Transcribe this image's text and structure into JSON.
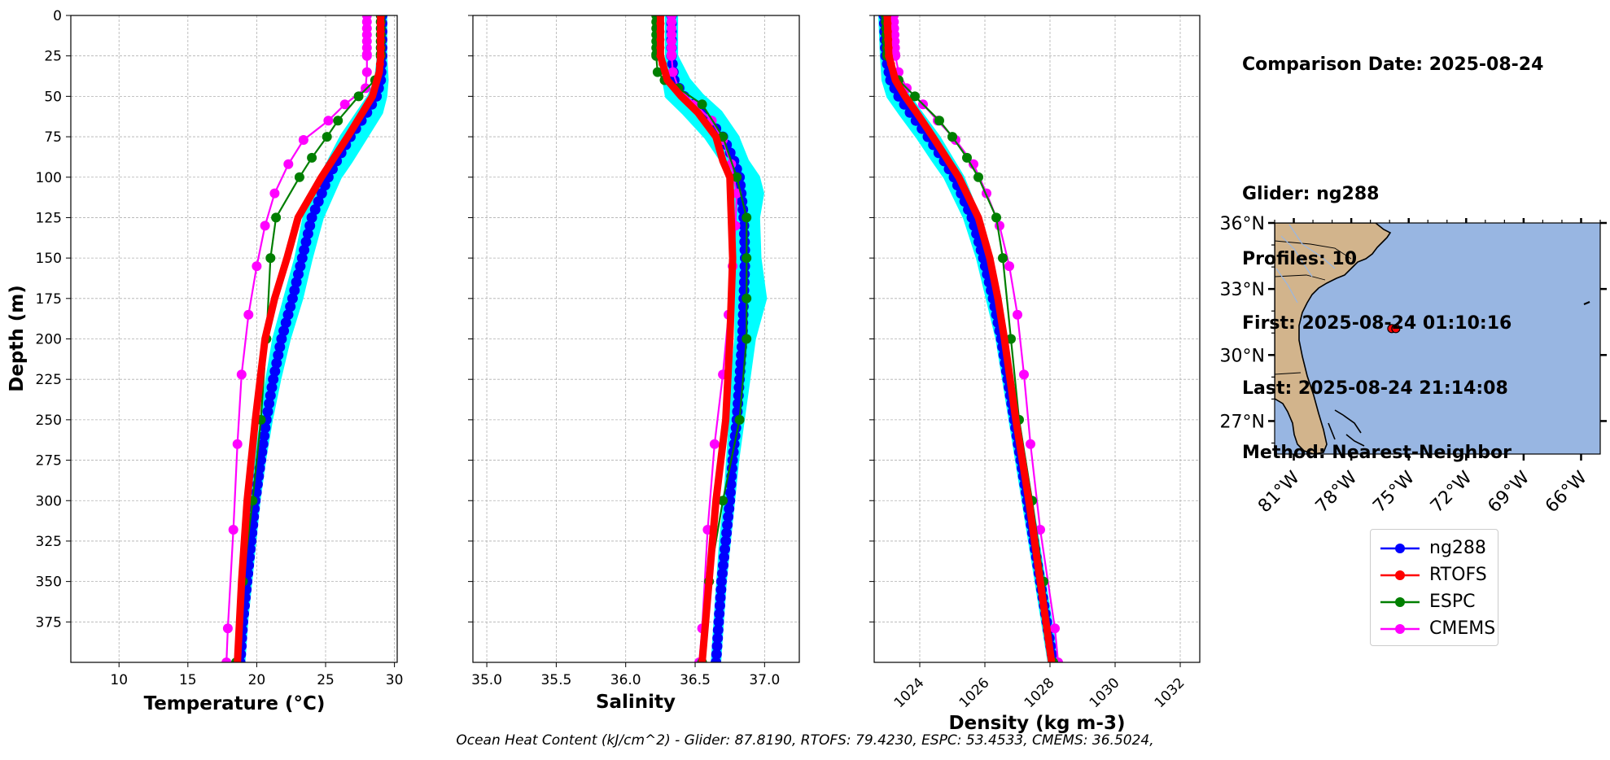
{
  "info": {
    "comparison_date": "Comparison Date: 2025-08-24",
    "glider": "Glider: ng288",
    "profiles": "Profiles: 10",
    "first": "First: 2025-08-24 01:10:16",
    "last": "Last: 2025-08-24 21:14:08",
    "method": "Method: Nearest-Neighbor"
  },
  "footer": "Ocean Heat Content (kJ/cm^2) - Glider: 87.8190,  RTOFS: 79.4230,  ESPC: 53.4533,  CMEMS: 36.5024,",
  "colors": {
    "ng288": "#0000ff",
    "RTOFS": "#ff0000",
    "ESPC": "#007f00",
    "CMEMS": "#ff00ff",
    "glider_spread": "#00ffff",
    "ocean": "#98b6e2",
    "land": "#d2b48c"
  },
  "legend": [
    "ng288",
    "RTOFS",
    "ESPC",
    "CMEMS"
  ],
  "chart_data": [
    {
      "type": "line",
      "xlabel": "Temperature (°C)",
      "ylabel": "Depth (m)",
      "xlim": [
        6.5,
        30.2
      ],
      "ylim": [
        400,
        0
      ],
      "xticks": [
        10,
        15,
        20,
        25,
        30
      ],
      "yticks": [
        0,
        25,
        50,
        75,
        100,
        125,
        150,
        175,
        200,
        225,
        250,
        275,
        300,
        325,
        350,
        375
      ],
      "grid": true,
      "series": [
        {
          "name": "ng288",
          "depth": [
            0,
            25,
            40,
            50,
            60,
            75,
            90,
            100,
            125,
            150,
            175,
            200,
            225,
            250,
            275,
            300,
            325,
            350,
            375,
            400
          ],
          "values": [
            29.1,
            29.1,
            29.0,
            28.7,
            28.0,
            26.8,
            25.8,
            25.2,
            24.0,
            23.3,
            22.6,
            21.8,
            21.2,
            20.7,
            20.3,
            19.9,
            19.6,
            19.3,
            19.0,
            18.8
          ]
        },
        {
          "name": "RTOFS",
          "depth": [
            0,
            25,
            35,
            50,
            75,
            100,
            125,
            150,
            175,
            200,
            250,
            300,
            350,
            400
          ],
          "values": [
            29.0,
            29.0,
            28.9,
            28.4,
            26.6,
            24.7,
            23.0,
            22.2,
            21.3,
            20.6,
            19.9,
            19.3,
            18.9,
            18.6
          ]
        },
        {
          "name": "ESPC",
          "depth": [
            0,
            25,
            40,
            50,
            65,
            75,
            88,
            100,
            125,
            150,
            200,
            250,
            300,
            350,
            400
          ],
          "values": [
            29.0,
            29.0,
            28.6,
            27.4,
            25.9,
            25.1,
            24.0,
            23.1,
            21.4,
            21.0,
            20.7,
            20.3,
            19.7,
            19.0,
            18.5
          ]
        },
        {
          "name": "CMEMS",
          "depth": [
            0,
            25,
            35,
            45,
            55,
            65,
            77,
            92,
            110,
            130,
            155,
            185,
            222,
            265,
            318,
            379,
            400
          ],
          "values": [
            28.0,
            28.0,
            28.0,
            27.9,
            26.4,
            25.2,
            23.4,
            22.3,
            21.3,
            20.6,
            20.0,
            19.4,
            18.9,
            18.6,
            18.3,
            17.9,
            17.8
          ]
        }
      ],
      "spread": {
        "depth": [
          0,
          25,
          40,
          50,
          60,
          75,
          90,
          100,
          125,
          150,
          175,
          200,
          225,
          250,
          275,
          300,
          325,
          350,
          375,
          400
        ],
        "min": [
          28.9,
          28.9,
          28.7,
          28.2,
          27.4,
          26.2,
          25.3,
          24.7,
          23.5,
          22.9,
          22.1,
          21.3,
          20.8,
          20.4,
          20.0,
          19.7,
          19.4,
          19.1,
          18.8,
          18.6
        ],
        "max": [
          29.3,
          29.3,
          29.4,
          29.3,
          29.0,
          27.9,
          26.8,
          26.0,
          24.7,
          23.9,
          23.2,
          22.3,
          21.6,
          21.0,
          20.5,
          20.1,
          19.8,
          19.5,
          19.2,
          19.0
        ]
      }
    },
    {
      "type": "line",
      "xlabel": "Salinity",
      "xlim": [
        34.9,
        37.25
      ],
      "ylim": [
        400,
        0
      ],
      "xticks": [
        35.0,
        35.5,
        36.0,
        36.5,
        37.0
      ],
      "grid": true,
      "series": [
        {
          "name": "ng288",
          "depth": [
            0,
            25,
            40,
            50,
            60,
            75,
            90,
            100,
            125,
            150,
            175,
            200,
            225,
            250,
            275,
            300,
            325,
            350,
            375,
            400
          ],
          "values": [
            36.33,
            36.33,
            36.35,
            36.42,
            36.55,
            36.7,
            36.78,
            36.82,
            36.85,
            36.86,
            36.85,
            36.84,
            36.82,
            36.8,
            36.77,
            36.75,
            36.72,
            36.69,
            36.67,
            36.65
          ]
        },
        {
          "name": "RTOFS",
          "depth": [
            0,
            25,
            40,
            50,
            60,
            75,
            90,
            100,
            125,
            150,
            175,
            200,
            250,
            300,
            350,
            400
          ],
          "values": [
            36.25,
            36.25,
            36.3,
            36.4,
            36.52,
            36.65,
            36.7,
            36.75,
            36.76,
            36.77,
            36.76,
            36.75,
            36.72,
            36.65,
            36.6,
            36.55
          ]
        },
        {
          "name": "ESPC",
          "depth": [
            0,
            25,
            35,
            40,
            45,
            55,
            75,
            100,
            125,
            150,
            175,
            200,
            250,
            300,
            350,
            400
          ],
          "values": [
            36.22,
            36.22,
            36.23,
            36.28,
            36.38,
            36.55,
            36.7,
            36.8,
            36.87,
            36.87,
            36.87,
            36.87,
            36.82,
            36.7,
            36.6,
            36.55
          ]
        },
        {
          "name": "CMEMS",
          "depth": [
            0,
            25,
            35,
            45,
            55,
            65,
            77,
            92,
            110,
            130,
            155,
            185,
            222,
            265,
            318,
            379,
            400
          ],
          "values": [
            36.33,
            36.33,
            36.34,
            36.38,
            36.5,
            36.62,
            36.7,
            36.76,
            36.8,
            36.79,
            36.77,
            36.74,
            36.7,
            36.64,
            36.59,
            36.55,
            36.53
          ]
        }
      ],
      "spread": {
        "depth": [
          0,
          25,
          40,
          50,
          60,
          75,
          90,
          100,
          110,
          125,
          150,
          175,
          200,
          225,
          250,
          275,
          300,
          325,
          350,
          375,
          400
        ],
        "min": [
          36.3,
          36.3,
          36.28,
          36.3,
          36.42,
          36.58,
          36.7,
          36.76,
          36.78,
          36.8,
          36.8,
          36.8,
          36.8,
          36.77,
          36.76,
          36.74,
          36.72,
          36.69,
          36.67,
          36.65,
          36.63
        ],
        "max": [
          36.36,
          36.36,
          36.45,
          36.55,
          36.68,
          36.8,
          36.87,
          36.95,
          36.98,
          36.95,
          36.96,
          37.0,
          36.92,
          36.88,
          36.84,
          36.8,
          36.77,
          36.74,
          36.71,
          36.69,
          36.67
        ]
      }
    },
    {
      "type": "line",
      "xlabel": "Density (kg m-3)",
      "xlim": [
        1022.6,
        1032.6
      ],
      "ylim": [
        400,
        0
      ],
      "xticks": [
        1024,
        1026,
        1028,
        1030,
        1032
      ],
      "grid": true,
      "series": [
        {
          "name": "ng288",
          "depth": [
            0,
            25,
            40,
            50,
            60,
            75,
            90,
            100,
            125,
            150,
            175,
            200,
            225,
            250,
            275,
            300,
            325,
            350,
            375,
            400
          ],
          "values": [
            1022.9,
            1022.95,
            1023.1,
            1023.35,
            1023.7,
            1024.25,
            1024.75,
            1025.05,
            1025.6,
            1025.95,
            1026.25,
            1026.5,
            1026.7,
            1026.9,
            1027.1,
            1027.3,
            1027.5,
            1027.7,
            1027.9,
            1028.1
          ]
        },
        {
          "name": "RTOFS",
          "depth": [
            0,
            25,
            40,
            50,
            60,
            75,
            100,
            125,
            150,
            175,
            200,
            250,
            300,
            350,
            400
          ],
          "values": [
            1023.0,
            1023.05,
            1023.25,
            1023.55,
            1023.9,
            1024.4,
            1025.2,
            1025.8,
            1026.15,
            1026.4,
            1026.6,
            1026.95,
            1027.35,
            1027.7,
            1028.05
          ]
        },
        {
          "name": "ESPC",
          "depth": [
            0,
            25,
            40,
            50,
            65,
            75,
            88,
            100,
            125,
            150,
            200,
            250,
            300,
            350,
            400
          ],
          "values": [
            1022.95,
            1023.0,
            1023.35,
            1023.85,
            1024.6,
            1025.0,
            1025.45,
            1025.8,
            1026.35,
            1026.55,
            1026.8,
            1027.05,
            1027.45,
            1027.8,
            1028.1
          ]
        },
        {
          "name": "CMEMS",
          "depth": [
            0,
            25,
            35,
            45,
            55,
            65,
            77,
            92,
            110,
            130,
            155,
            185,
            222,
            265,
            318,
            379,
            400
          ],
          "values": [
            1023.2,
            1023.25,
            1023.35,
            1023.6,
            1024.1,
            1024.55,
            1025.1,
            1025.65,
            1026.05,
            1026.45,
            1026.75,
            1027.0,
            1027.2,
            1027.4,
            1027.7,
            1028.15,
            1028.25
          ]
        }
      ],
      "spread": {
        "depth": [
          0,
          25,
          40,
          50,
          60,
          75,
          90,
          100,
          125,
          150,
          175,
          200,
          225,
          250,
          275,
          300,
          325,
          350,
          375,
          400
        ],
        "min": [
          1022.8,
          1022.85,
          1022.9,
          1023.05,
          1023.4,
          1023.95,
          1024.45,
          1024.8,
          1025.4,
          1025.8,
          1026.1,
          1026.4,
          1026.6,
          1026.8,
          1027.0,
          1027.2,
          1027.4,
          1027.6,
          1027.8,
          1028.0
        ],
        "max": [
          1023.0,
          1023.05,
          1023.3,
          1023.65,
          1024.0,
          1024.55,
          1025.0,
          1025.3,
          1025.8,
          1026.1,
          1026.4,
          1026.6,
          1026.8,
          1027.0,
          1027.2,
          1027.4,
          1027.6,
          1027.8,
          1028.0,
          1028.2
        ]
      }
    },
    {
      "type": "map",
      "lat_ticks": [
        "27°N",
        "30°N",
        "33°N",
        "36°N"
      ],
      "lon_ticks": [
        "81°W",
        "78°W",
        "75°W",
        "72°W",
        "69°W",
        "66°W"
      ],
      "extent": {
        "lon": [
          -82.0,
          -65.0
        ],
        "lat": [
          25.5,
          36.0
        ]
      },
      "glider_position": {
        "lon": -75.8,
        "lat": 31.2
      }
    }
  ]
}
